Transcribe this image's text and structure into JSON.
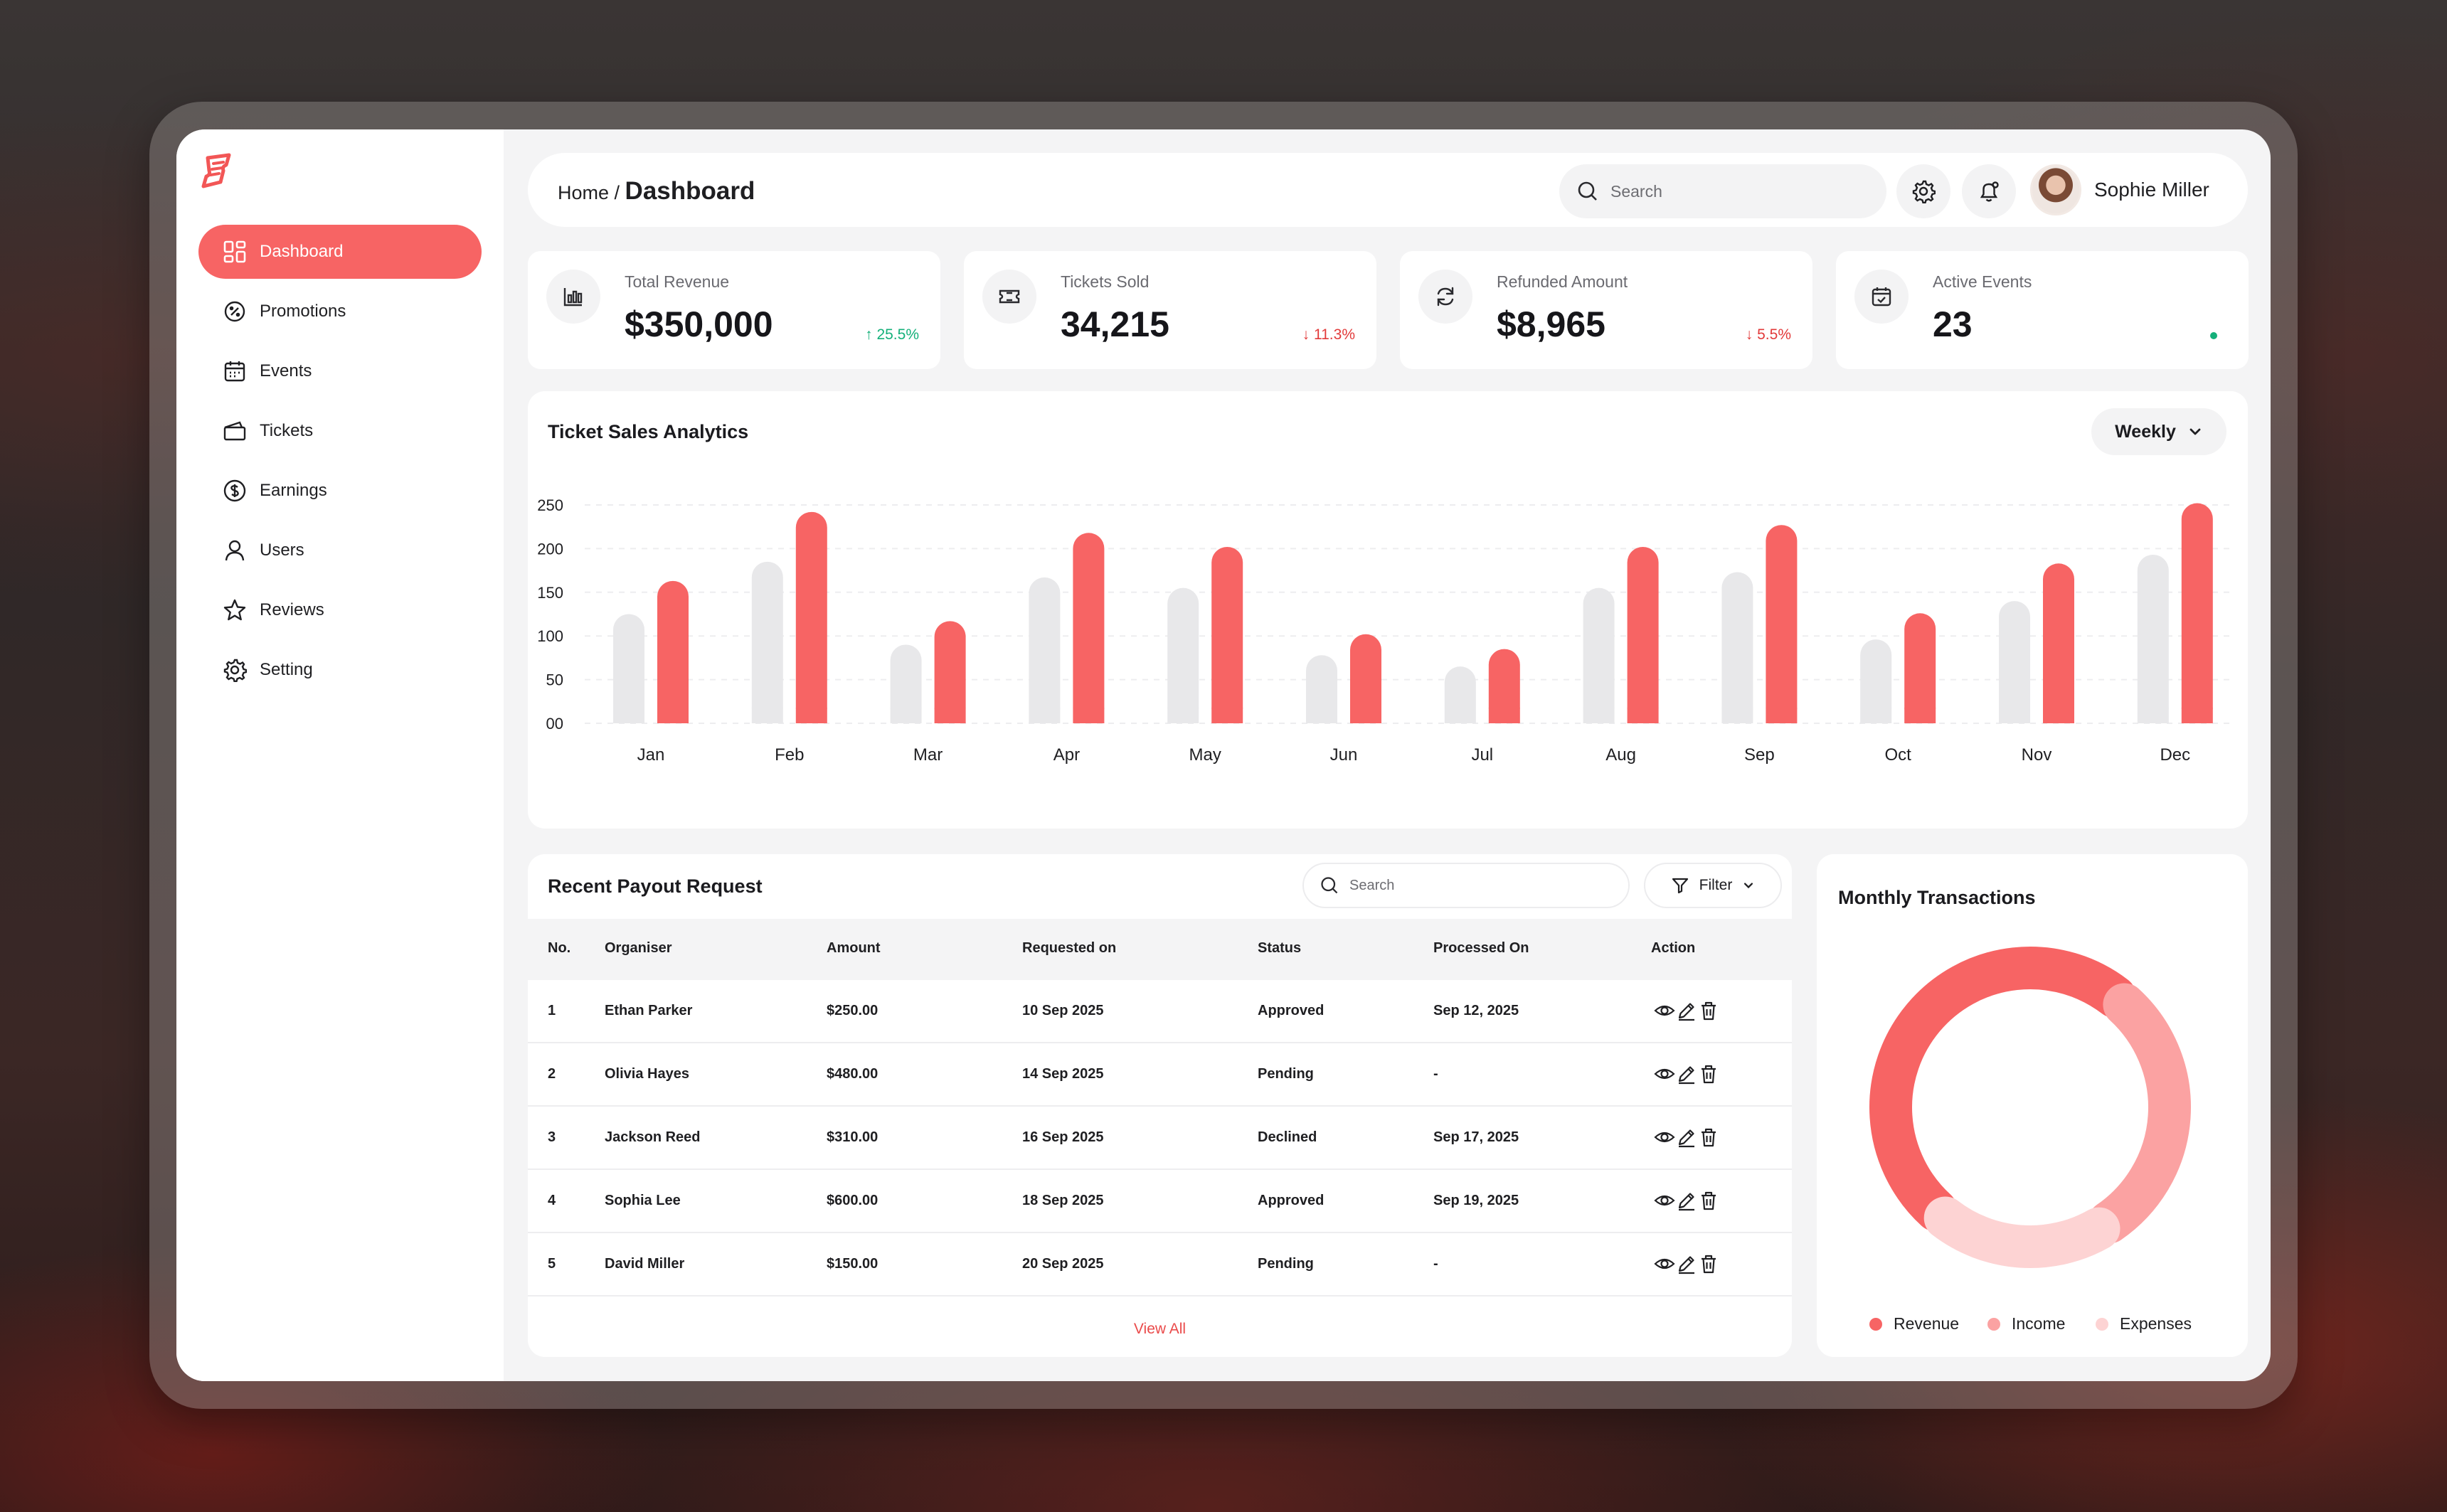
{
  "sidebar": {
    "items": [
      {
        "label": "Dashboard",
        "icon": "dashboard-grid-icon",
        "active": true
      },
      {
        "label": "Promotions",
        "icon": "promotion-badge-icon"
      },
      {
        "label": "Events",
        "icon": "calendar-icon"
      },
      {
        "label": "Tickets",
        "icon": "ticket-icon"
      },
      {
        "label": "Earnings",
        "icon": "dollar-icon"
      },
      {
        "label": "Users",
        "icon": "user-icon"
      },
      {
        "label": "Reviews",
        "icon": "star-icon"
      },
      {
        "label": "Setting",
        "icon": "gear-icon"
      }
    ]
  },
  "header": {
    "crumb_home": "Home /",
    "crumb_current": "Dashboard",
    "search_placeholder": "Search",
    "user_name": "Sophie Miller"
  },
  "stats": [
    {
      "label": "Total Revenue",
      "value": "$350,000",
      "trend": "25.5%",
      "direction": "up",
      "icon": "bar-chart-icon"
    },
    {
      "label": "Tickets Sold",
      "value": "34,215",
      "trend": "11.3%",
      "direction": "down",
      "icon": "ticket-icon"
    },
    {
      "label": "Refunded Amount",
      "value": "$8,965",
      "trend": "5.5%",
      "direction": "down",
      "icon": "refresh-icon"
    },
    {
      "label": "Active Events",
      "value": "23",
      "trend": "",
      "direction": "live",
      "icon": "calendar-check-icon"
    }
  ],
  "chart": {
    "title": "Ticket Sales Analytics",
    "period": "Weekly"
  },
  "chart_data": {
    "type": "bar",
    "categories": [
      "Jan",
      "Feb",
      "Mar",
      "Apr",
      "May",
      "Jun",
      "Jul",
      "Aug",
      "Sep",
      "Oct",
      "Nov",
      "Dec"
    ],
    "series": [
      {
        "values": [
          125,
          185,
          90,
          167,
          155,
          78,
          65,
          155,
          173,
          96,
          140,
          193
        ],
        "color": "#e8e8ea"
      },
      {
        "values": [
          163,
          242,
          117,
          218,
          202,
          102,
          85,
          202,
          227,
          126,
          183,
          252
        ],
        "color": "#f76464"
      }
    ],
    "ylim": [
      0,
      250
    ],
    "yticks": [
      "00",
      "50",
      "100",
      "150",
      "200",
      "250"
    ],
    "grid": true
  },
  "payouts": {
    "title": "Recent Payout Request",
    "search_placeholder": "Search",
    "filter_label": "Filter",
    "columns": [
      "No.",
      "Organiser",
      "Amount",
      "Requested on",
      "Status",
      "Processed On",
      "Action"
    ],
    "rows": [
      {
        "no": "1",
        "organiser": "Ethan Parker",
        "amount": "$250.00",
        "requested": "10 Sep 2025",
        "status": "Approved",
        "processed": "Sep 12, 2025"
      },
      {
        "no": "2",
        "organiser": "Olivia Hayes",
        "amount": "$480.00",
        "requested": "14 Sep 2025",
        "status": "Pending",
        "processed": "-"
      },
      {
        "no": "3",
        "organiser": "Jackson Reed",
        "amount": "$310.00",
        "requested": "16 Sep 2025",
        "status": "Declined",
        "processed": "Sep 17, 2025"
      },
      {
        "no": "4",
        "organiser": "Sophia Lee",
        "amount": "$600.00",
        "requested": "18 Sep 2025",
        "status": "Approved",
        "processed": "Sep 19, 2025"
      },
      {
        "no": "5",
        "organiser": "David Miller",
        "amount": "$150.00",
        "requested": "20 Sep 2025",
        "status": "Pending",
        "processed": "-"
      }
    ],
    "view_all": "View All"
  },
  "transactions": {
    "title": "Monthly Transactions",
    "segments": [
      {
        "name": "Revenue",
        "value": 50,
        "color": "#f76464"
      },
      {
        "name": "Income",
        "value": 30,
        "color": "#fba2a2"
      },
      {
        "name": "Expenses",
        "value": 20,
        "color": "#fdd3d3"
      }
    ]
  },
  "colors": {
    "accent": "#f76464",
    "up": "#15b07a",
    "down": "#e23a3a"
  }
}
